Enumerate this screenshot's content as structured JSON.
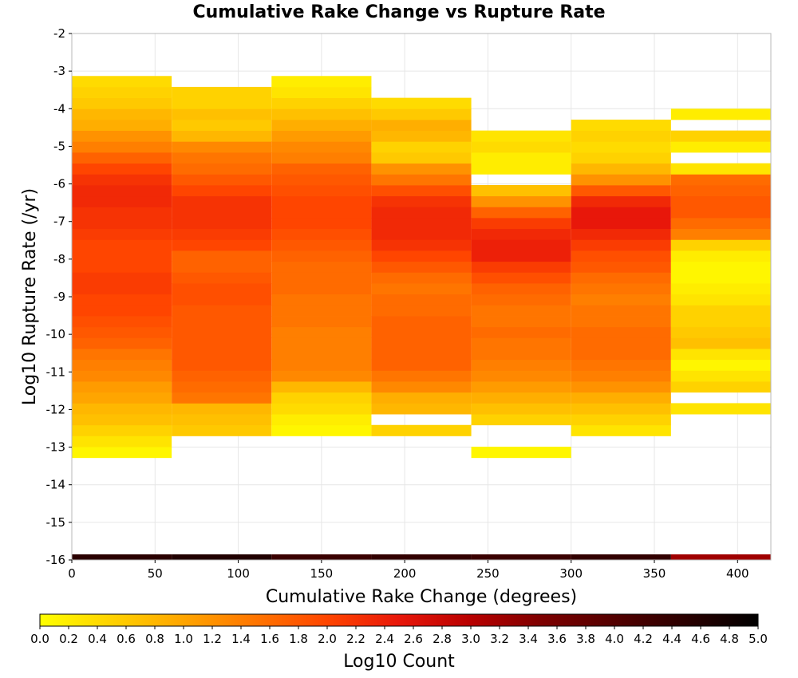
{
  "chart_data": {
    "type": "heatmap",
    "title": "Cumulative Rake Change vs Rupture Rate",
    "xlabel": "Cumulative Rake Change (degrees)",
    "ylabel": "Log10 Rupture Rate (/yr)",
    "xlim": [
      0,
      420
    ],
    "ylim": [
      -16,
      -2
    ],
    "x_ticks": [
      "0",
      "50",
      "100",
      "150",
      "200",
      "250",
      "300",
      "350",
      "400"
    ],
    "x_tick_values": [
      0,
      50,
      100,
      150,
      200,
      250,
      300,
      350,
      400
    ],
    "y_ticks": [
      "-16",
      "-15",
      "-14",
      "-13",
      "-12",
      "-11",
      "-10",
      "-9",
      "-8",
      "-7",
      "-6",
      "-5",
      "-4",
      "-3",
      "-2"
    ],
    "y_tick_values": [
      -16,
      -15,
      -14,
      -13,
      -12,
      -11,
      -10,
      -9,
      -8,
      -7,
      -6,
      -5,
      -4,
      -3,
      -2
    ],
    "grid": true,
    "x_bins": [
      0,
      60,
      120,
      180,
      240,
      300,
      360
    ],
    "x_bin_width": 60,
    "y_bin_width": 0.29,
    "columns": [
      {
        "x": 0,
        "y_start": -13.28,
        "values": [
          0.1,
          0.3,
          0.5,
          0.7,
          0.8,
          1.0,
          1.1,
          1.3,
          1.4,
          1.5,
          1.7,
          1.8,
          1.9,
          2.0,
          2.0,
          2.1,
          2.1,
          2.0,
          2.0,
          2.0,
          2.1,
          2.2,
          2.2,
          2.3,
          2.3,
          2.2,
          2.0,
          1.7,
          1.4,
          1.2,
          0.9,
          0.8,
          0.6,
          0.5,
          0.4
        ]
      },
      {
        "x": 60,
        "y_start": -12.7,
        "values": [
          0.6,
          0.7,
          0.8,
          1.5,
          1.6,
          1.7,
          1.8,
          1.8,
          1.8,
          1.8,
          1.8,
          1.8,
          1.9,
          1.9,
          1.8,
          1.7,
          1.7,
          2.0,
          2.1,
          2.2,
          2.2,
          2.2,
          2.0,
          1.8,
          1.6,
          1.5,
          1.3,
          0.8,
          0.6,
          0.7,
          0.5,
          0.5
        ]
      },
      {
        "x": 120,
        "y_start": -12.7,
        "values": [
          0.1,
          0.2,
          0.4,
          0.5,
          0.8,
          1.3,
          1.4,
          1.4,
          1.4,
          1.4,
          1.5,
          1.5,
          1.5,
          1.6,
          1.6,
          1.6,
          1.7,
          1.8,
          1.9,
          2.0,
          2.0,
          2.0,
          1.9,
          1.8,
          1.7,
          1.4,
          1.3,
          1.1,
          0.9,
          0.7,
          0.5,
          0.3,
          0.2
        ]
      },
      {
        "x": 180,
        "y_start": -12.7,
        "values": [
          0.5,
          null,
          0.8,
          0.9,
          1.3,
          1.5,
          1.7,
          1.7,
          1.7,
          1.7,
          1.7,
          1.6,
          1.6,
          1.5,
          1.6,
          1.8,
          2.0,
          2.2,
          2.3,
          2.3,
          2.3,
          2.2,
          1.9,
          1.5,
          1.2,
          0.6,
          0.5,
          0.8,
          0.9,
          0.6,
          0.4
        ]
      },
      {
        "x": 240,
        "y_start": -13.28,
        "values": [
          0.1,
          null,
          null,
          0.5,
          0.7,
          0.9,
          1.1,
          1.3,
          1.4,
          1.5,
          1.5,
          1.6,
          1.5,
          1.5,
          1.6,
          1.7,
          1.9,
          2.1,
          2.4,
          2.4,
          2.3,
          2.1,
          1.7,
          1.2,
          0.7,
          null,
          0.2,
          0.2,
          0.4,
          0.3
        ]
      },
      {
        "x": 300,
        "y_start": -12.7,
        "values": [
          0.3,
          0.5,
          0.7,
          0.9,
          1.2,
          1.4,
          1.5,
          1.6,
          1.6,
          1.6,
          1.5,
          1.5,
          1.4,
          1.5,
          1.6,
          1.8,
          1.9,
          2.1,
          2.3,
          2.5,
          2.5,
          2.3,
          1.8,
          1.2,
          0.8,
          0.5,
          0.4,
          0.5,
          0.4
        ]
      },
      {
        "x": 360,
        "y_start": -12.12,
        "values": [
          0.3,
          null,
          0.5,
          0.3,
          0.1,
          0.3,
          0.7,
          0.6,
          0.5,
          0.5,
          0.3,
          0.2,
          0.1,
          0.1,
          0.2,
          0.5,
          1.4,
          1.6,
          1.8,
          1.8,
          1.7,
          1.6,
          0.3,
          null,
          0.2,
          0.5,
          null,
          0.2
        ]
      }
    ],
    "bottom_row": {
      "y": -16,
      "values": [
        4.5,
        4.6,
        4.3,
        4.4,
        4.3,
        4.4,
        3.2
      ]
    },
    "colorbar": {
      "label": "Log10 Count",
      "range": [
        0.0,
        5.0
      ],
      "ticks": [
        "0.0",
        "0.2",
        "0.4",
        "0.6",
        "0.8",
        "1.0",
        "1.2",
        "1.4",
        "1.6",
        "1.8",
        "2.0",
        "2.2",
        "2.4",
        "2.6",
        "2.8",
        "3.0",
        "3.2",
        "3.4",
        "3.6",
        "3.8",
        "4.0",
        "4.2",
        "4.4",
        "4.6",
        "4.8",
        "5.0"
      ],
      "orientation": "horizontal",
      "colormap": [
        "#ffff00",
        "#ffa500",
        "#ff4500",
        "#e8170a",
        "#b80000",
        "#7d0000",
        "#000000"
      ]
    }
  }
}
